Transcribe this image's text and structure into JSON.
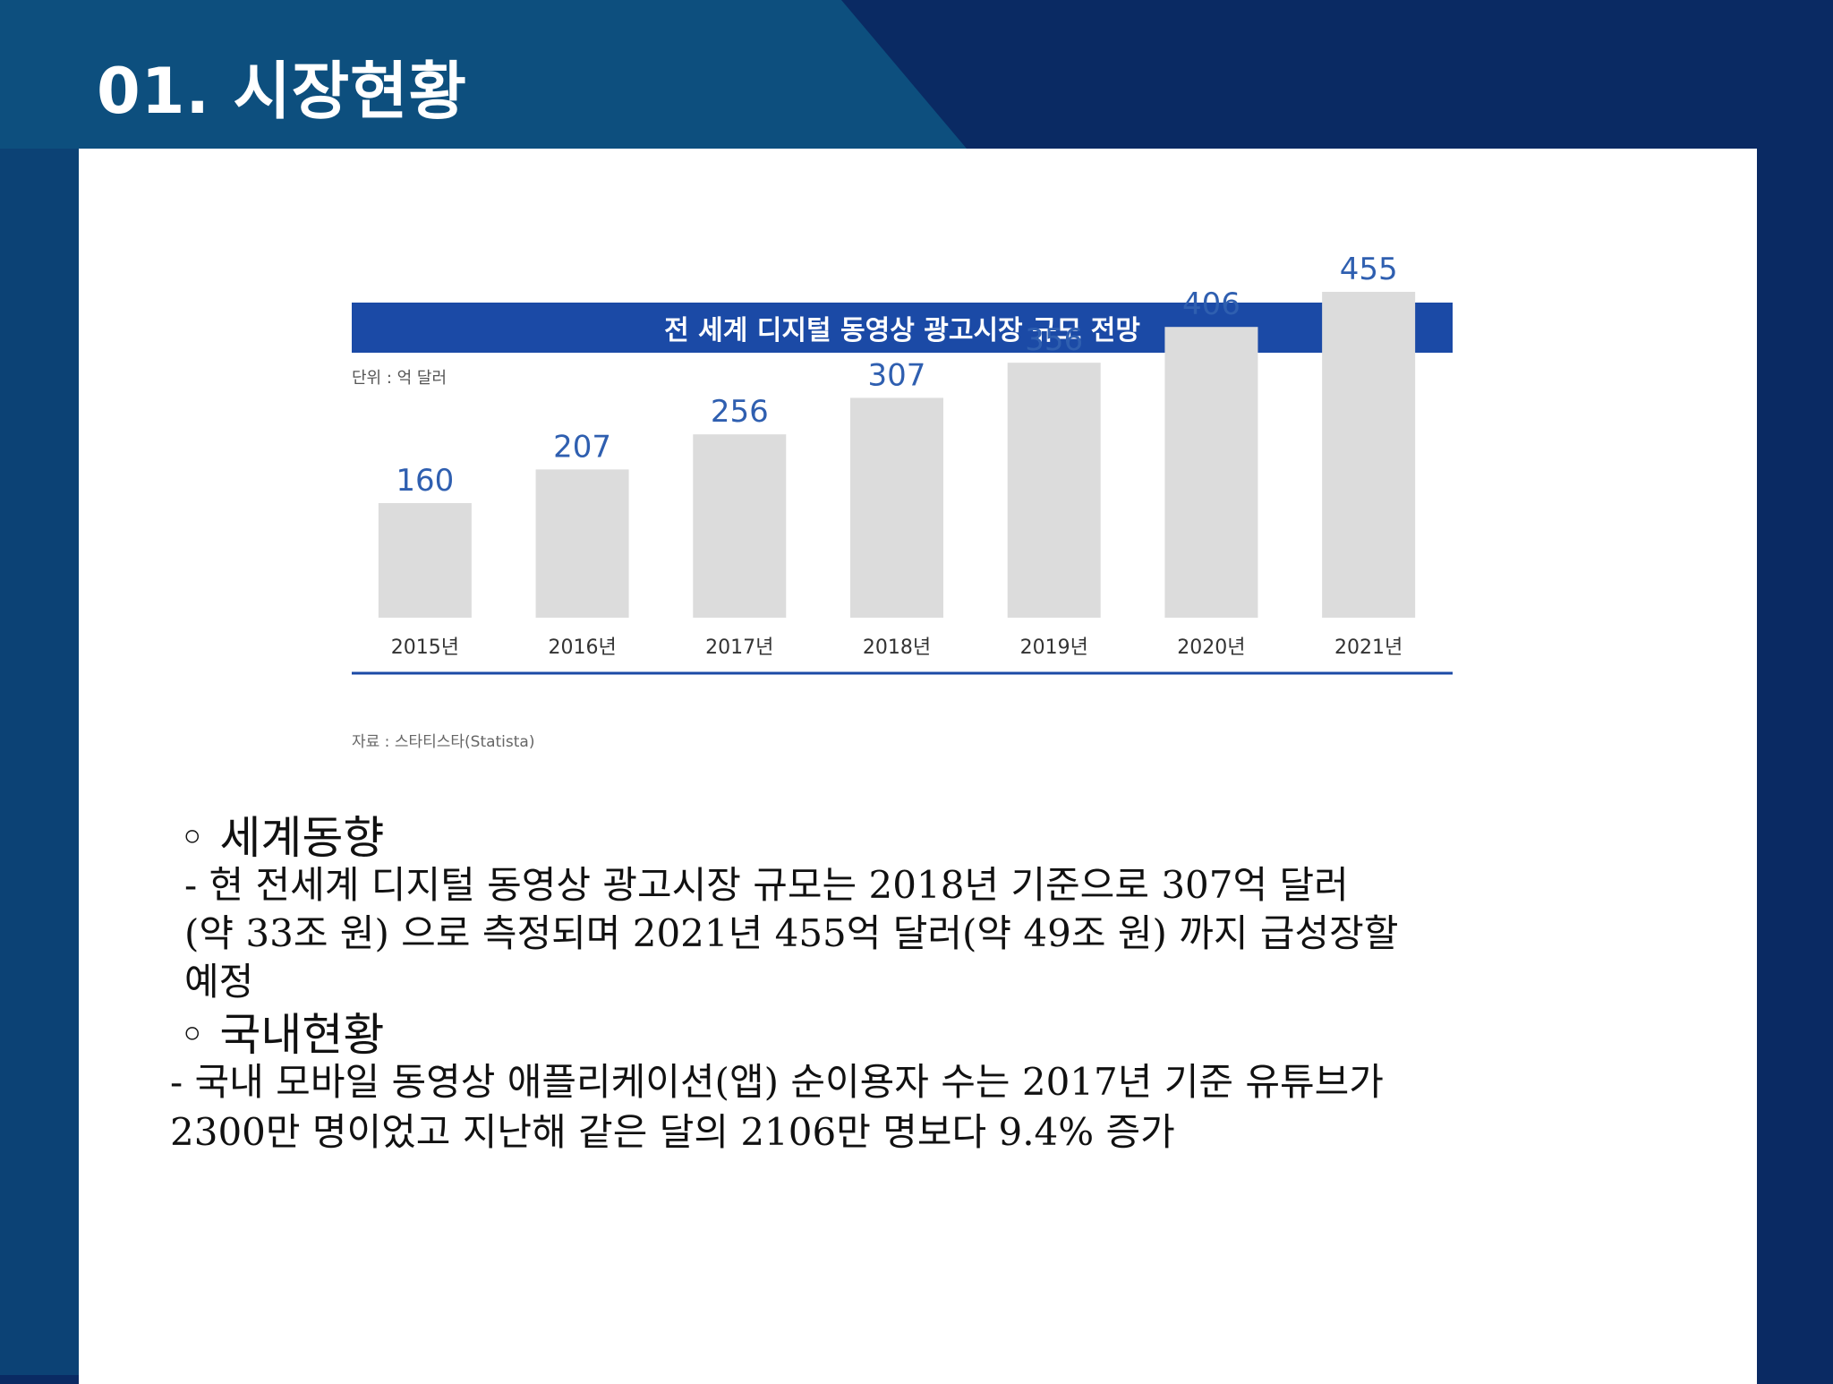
{
  "slide": {
    "title": "01. 시장현황"
  },
  "colors": {
    "background_dark": "#0a2a63",
    "background_light": "#0d4f7e",
    "chart_title_bar": "#1b4aa6",
    "bar_fill": "#dcdcdc",
    "value_label": "#2f5fb0",
    "baseline": "#1b4aa6"
  },
  "chart_data": {
    "type": "bar",
    "title": "전 세계 디지털 동영상 광고시장 규모 전망",
    "unit_note": "단위 : 억 달러",
    "source": "자료 : 스타티스타(Statista)",
    "categories": [
      "2015년",
      "2016년",
      "2017년",
      "2018년",
      "2019년",
      "2020년",
      "2021년"
    ],
    "values": [
      160,
      207,
      256,
      307,
      356,
      406,
      455
    ],
    "ylim": [
      0,
      500
    ],
    "grid": false,
    "legend": "none"
  },
  "sections": [
    {
      "heading": "◦ 세계동향",
      "lines": [
        "-  현 전세계 디지털 동영상 광고시장 규모는 2018년 기준으로 307억 달러",
        "(약 33조 원) 으로 측정되며 2021년 455억 달러(약 49조 원) 까지 급성장할",
        "예정"
      ]
    },
    {
      "heading": "◦ 국내현황",
      "lines": [
        "- 국내 모바일 동영상 애플리케이션(앱) 순이용자 수는 2017년 기준 유튜브가",
        "2300만 명이었고 지난해 같은 달의 2106만 명보다 9.4% 증가"
      ]
    }
  ]
}
